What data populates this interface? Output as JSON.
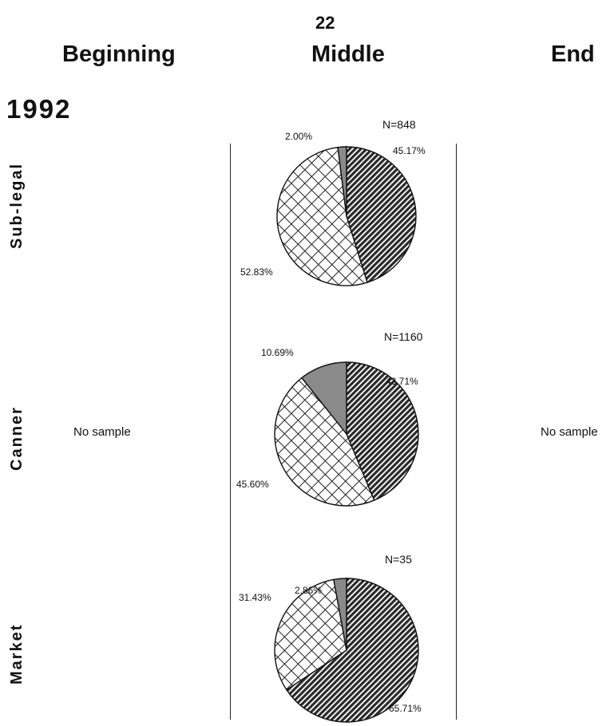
{
  "page_number": "22",
  "column_headers": [
    "Beginning",
    "Middle",
    "End"
  ],
  "year": "1992",
  "row_labels": [
    "Sub-legal",
    "Canner",
    "Market"
  ],
  "no_sample_text": "No sample",
  "colors": {
    "dark_hatch": "#2a2a2a",
    "gray_slice": "#8a8a8a",
    "crosshatch_line": "#222222",
    "outline": "#111111"
  },
  "chart_data": [
    {
      "type": "pie",
      "row": "Sub-legal",
      "n_label": "N=848",
      "slices": [
        {
          "category": "dark hatched",
          "value": 45.17,
          "label": "45.17%",
          "pattern": "hatch"
        },
        {
          "category": "crosshatched",
          "value": 52.83,
          "label": "52.83%",
          "pattern": "cross"
        },
        {
          "category": "gray",
          "value": 2.0,
          "label": "2.00%",
          "pattern": "gray"
        }
      ]
    },
    {
      "type": "pie",
      "row": "Canner",
      "n_label": "N=1160",
      "slices": [
        {
          "category": "dark hatched",
          "value": 43.71,
          "label": "43.71%",
          "pattern": "hatch"
        },
        {
          "category": "crosshatched",
          "value": 45.6,
          "label": "45.60%",
          "pattern": "cross"
        },
        {
          "category": "gray",
          "value": 10.69,
          "label": "10.69%",
          "pattern": "gray"
        }
      ]
    },
    {
      "type": "pie",
      "row": "Market",
      "n_label": "N=35",
      "slices": [
        {
          "category": "dark hatched",
          "value": 65.71,
          "label": "65.71%",
          "pattern": "hatch"
        },
        {
          "category": "crosshatched",
          "value": 31.43,
          "label": "31.43%",
          "pattern": "cross"
        },
        {
          "category": "gray",
          "value": 2.86,
          "label": "2.86%",
          "pattern": "gray"
        }
      ]
    }
  ]
}
